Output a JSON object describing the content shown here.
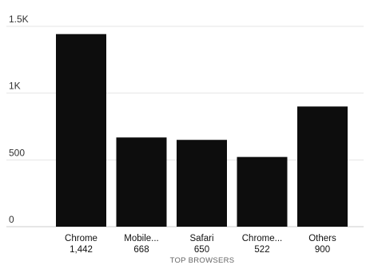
{
  "chart_data": {
    "type": "bar",
    "title": "",
    "xlabel": "TOP BROWSERS",
    "ylabel": "",
    "categories": [
      "Chrome",
      "Mobile...",
      "Safari",
      "Chrome...",
      "Others"
    ],
    "value_labels": [
      "1,442",
      "668",
      "650",
      "522",
      "900"
    ],
    "values": [
      1442,
      668,
      650,
      522,
      900
    ],
    "ylim": [
      0,
      1500
    ],
    "yticks": [
      0,
      500,
      1000,
      1500
    ],
    "ytick_labels": [
      "0",
      "500",
      "1K",
      "1.5K"
    ],
    "grid": true,
    "legend": "none",
    "bar_color": "#0d0d0d",
    "grid_color": "#e6e6e6"
  }
}
